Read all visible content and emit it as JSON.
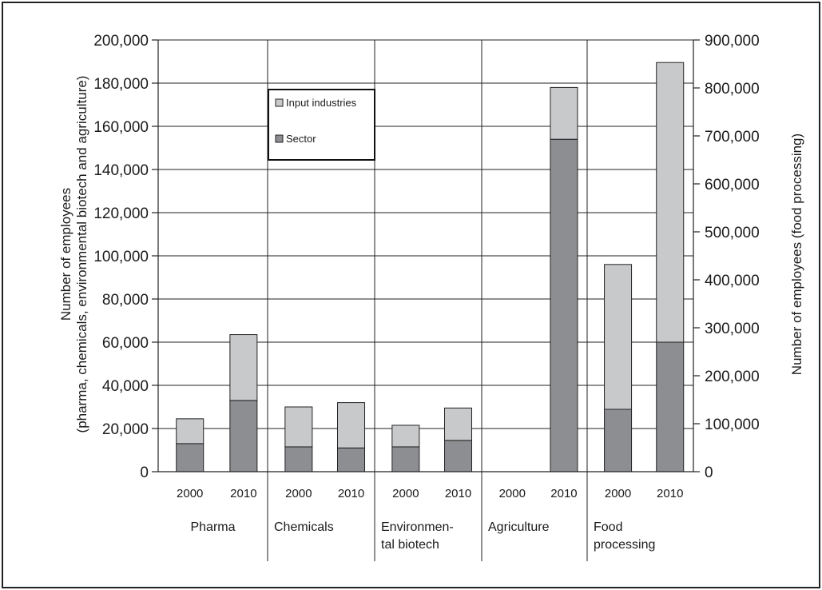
{
  "chart_data": {
    "type": "bar",
    "stacked": true,
    "dual_axis": true,
    "ylabel_left": [
      "Number of employees",
      "(pharma, chemicals, environmental biotech and agriculture)"
    ],
    "ylabel_right": "Number of employees (food processing)",
    "ylim_left": [
      0,
      200000
    ],
    "ylim_right": [
      0,
      900000
    ],
    "yticks_left": [
      "0",
      "20,000",
      "40,000",
      "60,000",
      "80,000",
      "100,000",
      "120,000",
      "140,000",
      "160,000",
      "180,000",
      "200,000"
    ],
    "yticks_right": [
      "0",
      "100,000",
      "200,000",
      "300,000",
      "400,000",
      "500,000",
      "600,000",
      "700,000",
      "800,000",
      "900,000"
    ],
    "grid": true,
    "legend_position": "top-left",
    "groups": [
      {
        "name": [
          "Pharma"
        ],
        "axis": "left",
        "bars": [
          {
            "year": "2000",
            "sector": 13000,
            "input": 11500
          },
          {
            "year": "2010",
            "sector": 33000,
            "input": 30500
          }
        ]
      },
      {
        "name": [
          "Chemicals"
        ],
        "axis": "left",
        "bars": [
          {
            "year": "2000",
            "sector": 11500,
            "input": 18500
          },
          {
            "year": "2010",
            "sector": 11000,
            "input": 21000
          }
        ]
      },
      {
        "name": [
          "Environmen-",
          "tal biotech"
        ],
        "axis": "left",
        "bars": [
          {
            "year": "2000",
            "sector": 11500,
            "input": 10000
          },
          {
            "year": "2010",
            "sector": 14500,
            "input": 15000
          }
        ]
      },
      {
        "name": [
          "Agriculture"
        ],
        "axis": "left",
        "bars": [
          {
            "year": "2000",
            "sector": 0,
            "input": 0
          },
          {
            "year": "2010",
            "sector": 154000,
            "input": 24000
          }
        ]
      },
      {
        "name": [
          "Food",
          "processing"
        ],
        "axis": "right",
        "bars": [
          {
            "year": "2000",
            "sector": 130000,
            "input": 302000
          },
          {
            "year": "2010",
            "sector": 270000,
            "input": 583000
          }
        ]
      }
    ],
    "series": [
      {
        "name": "Input industries",
        "color": "#c8c9cb"
      },
      {
        "name": "Sector",
        "color": "#8d8e91"
      }
    ]
  }
}
